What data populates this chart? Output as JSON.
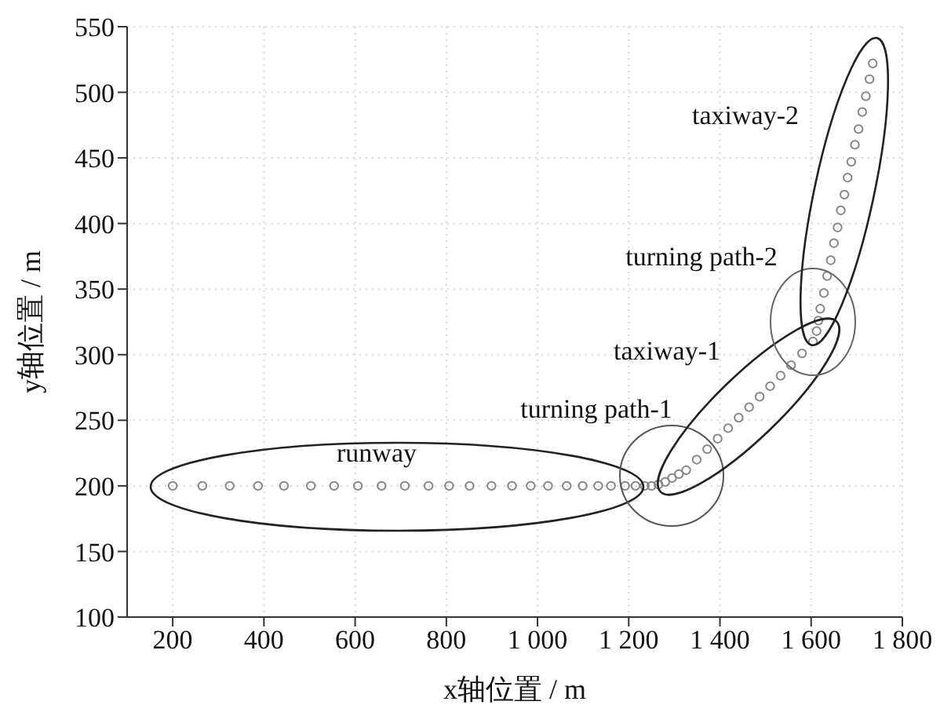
{
  "chart_data": {
    "type": "scatter",
    "xlabel": "x轴位置 / m",
    "ylabel": "y轴位置 / m",
    "xlim": [
      100,
      1800
    ],
    "ylim": [
      100,
      550
    ],
    "xticks": [
      200,
      400,
      600,
      800,
      {
        "value": 1000,
        "label": "1 000"
      },
      {
        "value": 1200,
        "label": "1 200"
      },
      {
        "value": 1400,
        "label": "1 400"
      },
      {
        "value": 1600,
        "label": "1 600"
      },
      {
        "value": 1800,
        "label": "1 800"
      }
    ],
    "yticks": [
      100,
      150,
      200,
      250,
      300,
      350,
      400,
      450,
      500,
      550
    ],
    "grid": true,
    "marker": "circle",
    "series": [
      {
        "color": "#888888",
        "x": [
          200,
          265,
          325,
          387,
          444,
          503,
          554,
          606,
          658,
          709,
          761,
          806,
          851,
          899,
          944,
          985,
          1023,
          1064,
          1099,
          1133,
          1161,
          1192,
          1215,
          1235,
          1250,
          1265,
          1280,
          1295,
          1310,
          1326,
          1349,
          1372,
          1395,
          1418,
          1441,
          1464,
          1487,
          1510,
          1533,
          1556,
          1580,
          1604,
          1612,
          1616,
          1620,
          1628,
          1635,
          1643,
          1650,
          1658,
          1665,
          1673,
          1680,
          1688,
          1696,
          1704,
          1712,
          1720,
          1728,
          1735
        ],
        "values": [
          200,
          200,
          200,
          200,
          200,
          200,
          200,
          200,
          200,
          200,
          200,
          200,
          200,
          200,
          200,
          200,
          200,
          200,
          200,
          200,
          200,
          200,
          200,
          200,
          200,
          201,
          203,
          206,
          209,
          212,
          220,
          228,
          236,
          244,
          252,
          260,
          268,
          276,
          284,
          292,
          301,
          310,
          318,
          326,
          335,
          347,
          360,
          372,
          385,
          397,
          410,
          422,
          435,
          447,
          460,
          472,
          485,
          497,
          510,
          522
        ]
      }
    ],
    "annotations": [
      "runway",
      "turning path-1",
      "taxiway-1",
      "turning path-2",
      "taxiway-2"
    ]
  }
}
